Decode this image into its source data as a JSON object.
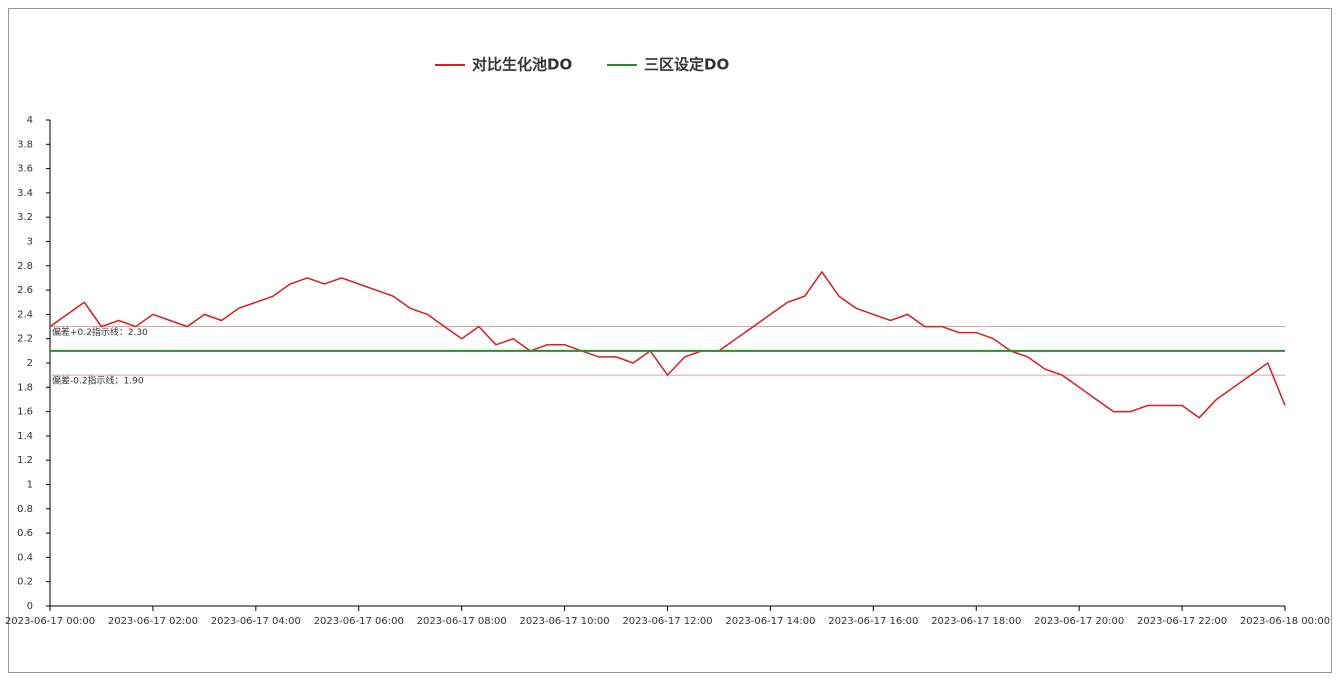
{
  "chart_data": {
    "type": "line",
    "series": [
      {
        "name": "对比生化池DO",
        "color": "#d42020",
        "x": [
          "2023-06-17 00:00",
          "2023-06-17 00:20",
          "2023-06-17 00:40",
          "2023-06-17 01:00",
          "2023-06-17 01:20",
          "2023-06-17 01:40",
          "2023-06-17 02:00",
          "2023-06-17 02:20",
          "2023-06-17 02:40",
          "2023-06-17 03:00",
          "2023-06-17 03:20",
          "2023-06-17 03:40",
          "2023-06-17 04:00",
          "2023-06-17 04:20",
          "2023-06-17 04:40",
          "2023-06-17 05:00",
          "2023-06-17 05:20",
          "2023-06-17 05:40",
          "2023-06-17 06:00",
          "2023-06-17 06:20",
          "2023-06-17 06:40",
          "2023-06-17 07:00",
          "2023-06-17 07:20",
          "2023-06-17 07:40",
          "2023-06-17 08:00",
          "2023-06-17 08:20",
          "2023-06-17 08:40",
          "2023-06-17 09:00",
          "2023-06-17 09:20",
          "2023-06-17 09:40",
          "2023-06-17 10:00",
          "2023-06-17 10:20",
          "2023-06-17 10:40",
          "2023-06-17 11:00",
          "2023-06-17 11:20",
          "2023-06-17 11:40",
          "2023-06-17 12:00",
          "2023-06-17 12:20",
          "2023-06-17 12:40",
          "2023-06-17 13:00",
          "2023-06-17 13:20",
          "2023-06-17 13:40",
          "2023-06-17 14:00",
          "2023-06-17 14:20",
          "2023-06-17 14:40",
          "2023-06-17 15:00",
          "2023-06-17 15:20",
          "2023-06-17 15:40",
          "2023-06-17 16:00",
          "2023-06-17 16:20",
          "2023-06-17 16:40",
          "2023-06-17 17:00",
          "2023-06-17 17:20",
          "2023-06-17 17:40",
          "2023-06-17 18:00",
          "2023-06-17 18:20",
          "2023-06-17 18:40",
          "2023-06-17 19:00",
          "2023-06-17 19:20",
          "2023-06-17 19:40",
          "2023-06-17 20:00",
          "2023-06-17 20:20",
          "2023-06-17 20:40",
          "2023-06-17 21:00",
          "2023-06-17 21:20",
          "2023-06-17 21:40",
          "2023-06-17 22:00",
          "2023-06-17 22:20",
          "2023-06-17 22:40",
          "2023-06-17 23:00",
          "2023-06-17 23:20",
          "2023-06-17 23:40",
          "2023-06-18 00:00"
        ],
        "values": [
          2.3,
          2.4,
          2.5,
          2.3,
          2.35,
          2.3,
          2.4,
          2.35,
          2.3,
          2.4,
          2.35,
          2.45,
          2.5,
          2.55,
          2.65,
          2.7,
          2.65,
          2.7,
          2.65,
          2.6,
          2.55,
          2.45,
          2.4,
          2.3,
          2.2,
          2.3,
          2.15,
          2.2,
          2.1,
          2.15,
          2.15,
          2.1,
          2.05,
          2.05,
          2.0,
          2.1,
          1.9,
          2.05,
          2.1,
          2.1,
          2.2,
          2.3,
          2.4,
          2.5,
          2.55,
          2.75,
          2.55,
          2.45,
          2.4,
          2.35,
          2.4,
          2.3,
          2.3,
          2.25,
          2.25,
          2.2,
          2.1,
          2.05,
          1.95,
          1.9,
          1.8,
          1.7,
          1.6,
          1.6,
          1.65,
          1.65,
          1.65,
          1.55,
          1.7,
          1.8,
          1.9,
          2.0,
          1.65
        ]
      },
      {
        "name": "三区设定DO",
        "color": "#2e8b2e",
        "x": [
          "2023-06-17 00:00",
          "2023-06-18 00:00"
        ],
        "values": [
          2.1,
          2.1
        ]
      }
    ],
    "annotations": [
      {
        "label": "偏差+0.2指示线：2.30",
        "value": 2.3,
        "color": "#d9a3a3"
      },
      {
        "label": "偏差-0.2指示线：1.90",
        "value": 1.9,
        "color": "#d9a3a3"
      }
    ],
    "xlim": [
      "2023-06-17 00:00",
      "2023-06-18 00:00"
    ],
    "xticks": [
      "2023-06-17 00:00",
      "2023-06-17 02:00",
      "2023-06-17 04:00",
      "2023-06-17 06:00",
      "2023-06-17 08:00",
      "2023-06-17 10:00",
      "2023-06-17 12:00",
      "2023-06-17 14:00",
      "2023-06-17 16:00",
      "2023-06-17 18:00",
      "2023-06-17 20:00",
      "2023-06-17 22:00",
      "2023-06-18 00:00"
    ],
    "ylim": [
      0,
      4
    ],
    "yticks": [
      0,
      0.2,
      0.4,
      0.6,
      0.8,
      1,
      1.2,
      1.4,
      1.6,
      1.8,
      2,
      2.2,
      2.4,
      2.6,
      2.8,
      3,
      3.2,
      3.4,
      3.6,
      3.8,
      4
    ],
    "legend": "top"
  }
}
